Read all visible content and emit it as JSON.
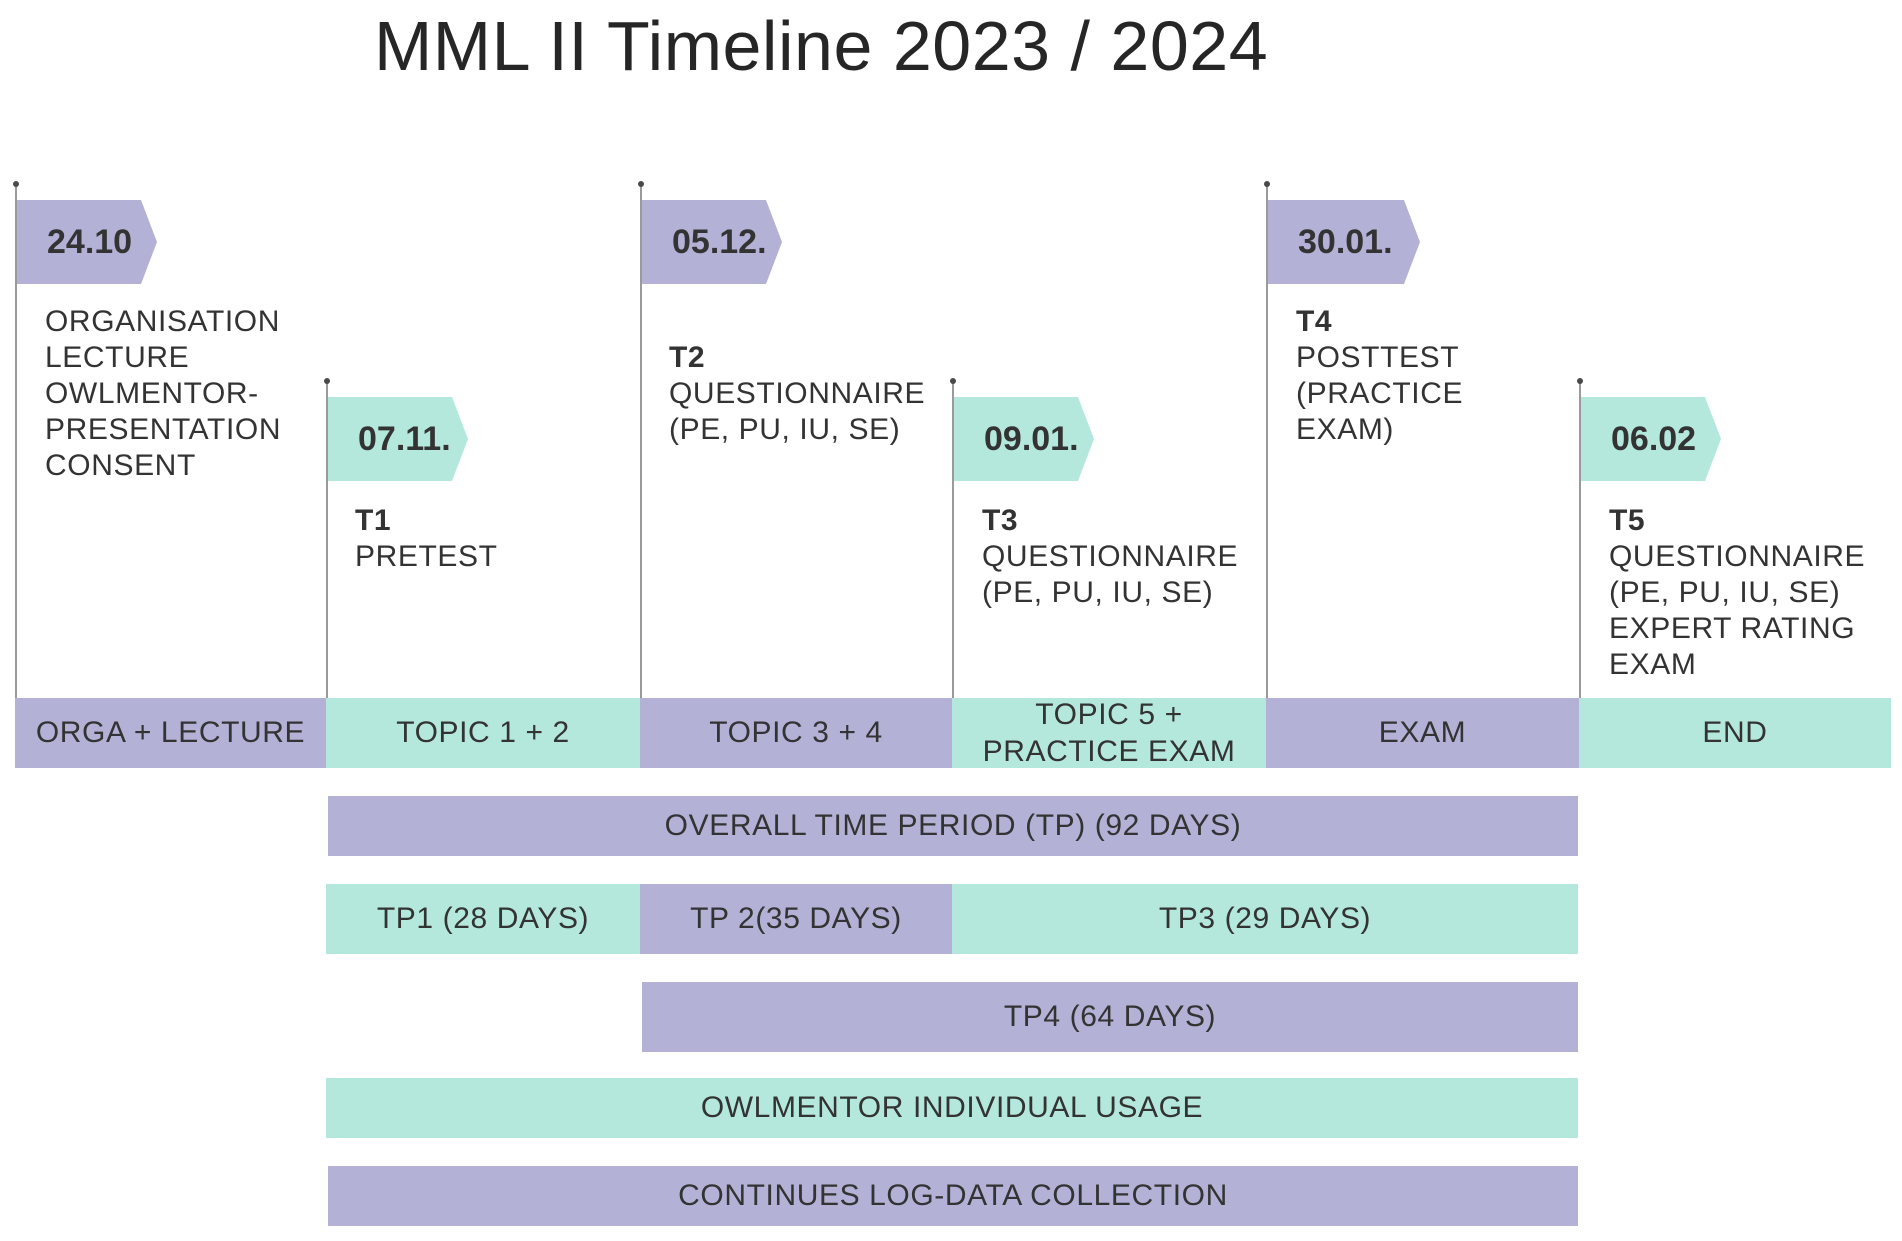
{
  "title": "MML II Timeline 2023 / 2024",
  "milestones": [
    {
      "date": "24.10",
      "label": "",
      "lines": [
        "ORGANISATION",
        "LECTURE",
        "OWLMENTOR-",
        "PRESENTATION",
        "CONSENT"
      ]
    },
    {
      "date": "07.11.",
      "label": "T1",
      "lines": [
        "PRETEST"
      ]
    },
    {
      "date": "05.12.",
      "label": "T2",
      "lines": [
        "QUESTIONNAIRE",
        "(PE, PU, IU, SE)"
      ]
    },
    {
      "date": "09.01.",
      "label": "T3",
      "lines": [
        "QUESTIONNAIRE",
        "(PE, PU, IU, SE)"
      ]
    },
    {
      "date": "30.01.",
      "label": "T4",
      "lines": [
        "POSTTEST",
        "(PRACTICE",
        "EXAM)"
      ]
    },
    {
      "date": "06.02",
      "label": "T5",
      "lines": [
        "QUESTIONNAIRE",
        "(PE, PU, IU, SE)",
        "EXPERT RATING",
        "EXAM"
      ]
    }
  ],
  "phases": [
    {
      "line1": "ORGA + LECTURE",
      "line2": ""
    },
    {
      "line1": "TOPIC 1 + 2",
      "line2": ""
    },
    {
      "line1": "TOPIC 3 + 4",
      "line2": ""
    },
    {
      "line1": "TOPIC 5 +",
      "line2": "PRACTICE EXAM"
    },
    {
      "line1": "EXAM",
      "line2": ""
    },
    {
      "line1": "END",
      "line2": ""
    }
  ],
  "periods": {
    "overall": "OVERALL TIME PERIOD (TP) (92 DAYS)",
    "tp1": "TP1 (28 DAYS)",
    "tp2": "TP 2(35 DAYS)",
    "tp3": "TP3 (29 DAYS)",
    "tp4": "TP4 (64 DAYS)",
    "usage": "OWLMENTOR INDIVIDUAL USAGE",
    "logdata": "CONTINUES LOG-DATA COLLECTION"
  },
  "colors": {
    "purple": "#b3b1d6",
    "mint": "#b4e8dc"
  }
}
